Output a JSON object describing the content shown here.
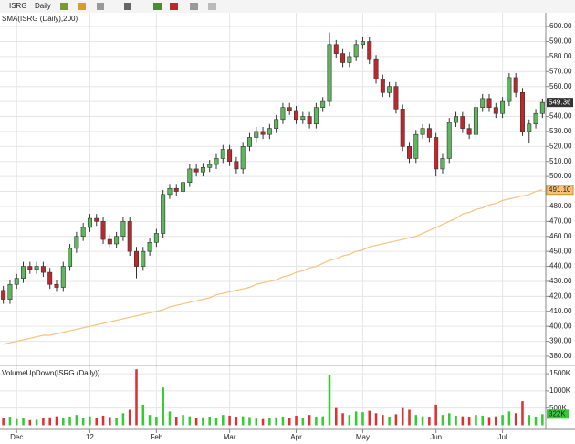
{
  "toolbar": {
    "symbol": "ISRG",
    "interval": "Daily"
  },
  "chart_data": [
    {
      "type": "candlestick",
      "title": "SMA(ISRG (Daily),200)",
      "categories": [
        null,
        null,
        "Dec",
        null,
        null,
        null,
        null,
        null,
        null,
        null,
        null,
        null,
        null,
        "12",
        null,
        null,
        null,
        null,
        null,
        null,
        null,
        null,
        null,
        "Feb",
        null,
        null,
        null,
        null,
        null,
        null,
        null,
        null,
        null,
        null,
        "Mar",
        null,
        null,
        null,
        null,
        null,
        null,
        null,
        null,
        null,
        "Apr",
        null,
        null,
        null,
        null,
        null,
        null,
        null,
        null,
        null,
        "May",
        null,
        null,
        null,
        null,
        null,
        null,
        null,
        null,
        null,
        null,
        "Jun",
        null,
        null,
        null,
        null,
        null,
        null,
        null,
        null,
        null,
        "Jul",
        null,
        null,
        null,
        null,
        null,
        null
      ],
      "open": [
        424,
        418,
        428,
        432,
        440,
        438,
        440,
        436,
        428,
        426,
        440,
        452,
        460,
        466,
        472,
        470,
        458,
        455,
        460,
        470,
        450,
        440,
        450,
        456,
        462,
        488,
        492,
        490,
        496,
        505,
        503,
        506,
        508,
        512,
        518,
        510,
        505,
        520,
        526,
        530,
        528,
        532,
        538,
        546,
        544,
        538,
        540,
        535,
        546,
        550,
        588,
        582,
        576,
        580,
        588,
        590,
        578,
        565,
        556,
        560,
        545,
        520,
        512,
        528,
        532,
        526,
        505,
        512,
        536,
        540,
        532,
        528,
        546,
        552,
        546,
        542,
        550,
        566,
        556,
        530,
        535,
        542
      ],
      "high": [
        427,
        431,
        435,
        443,
        443,
        443,
        443,
        439,
        431,
        443,
        455,
        463,
        469,
        475,
        475,
        473,
        461,
        463,
        473,
        473,
        453,
        453,
        459,
        465,
        491,
        495,
        495,
        499,
        508,
        508,
        509,
        511,
        515,
        521,
        521,
        513,
        523,
        529,
        533,
        533,
        535,
        541,
        549,
        549,
        547,
        543,
        543,
        549,
        553,
        596,
        591,
        585,
        583,
        591,
        593,
        593,
        581,
        568,
        563,
        563,
        548,
        523,
        531,
        535,
        535,
        529,
        515,
        539,
        543,
        543,
        535,
        549,
        555,
        555,
        549,
        553,
        569,
        569,
        559,
        538,
        545,
        552
      ],
      "low": [
        415,
        415,
        425,
        429,
        435,
        435,
        433,
        425,
        423,
        423,
        437,
        449,
        457,
        463,
        467,
        455,
        452,
        452,
        457,
        447,
        432,
        437,
        447,
        453,
        459,
        485,
        487,
        487,
        493,
        500,
        500,
        503,
        505,
        509,
        507,
        502,
        502,
        517,
        523,
        525,
        525,
        529,
        535,
        541,
        535,
        535,
        532,
        532,
        543,
        547,
        579,
        573,
        573,
        577,
        585,
        575,
        562,
        553,
        553,
        542,
        517,
        509,
        509,
        525,
        523,
        500,
        502,
        509,
        533,
        529,
        525,
        525,
        543,
        543,
        539,
        539,
        547,
        553,
        527,
        522,
        532,
        539
      ],
      "close": [
        418,
        428,
        432,
        440,
        438,
        440,
        436,
        428,
        426,
        440,
        452,
        460,
        466,
        472,
        470,
        458,
        455,
        460,
        470,
        450,
        440,
        450,
        456,
        462,
        488,
        492,
        490,
        496,
        505,
        503,
        506,
        508,
        512,
        518,
        510,
        505,
        520,
        526,
        530,
        528,
        532,
        538,
        546,
        544,
        538,
        540,
        535,
        546,
        550,
        588,
        582,
        576,
        580,
        588,
        590,
        578,
        565,
        556,
        560,
        545,
        520,
        512,
        528,
        532,
        526,
        505,
        512,
        536,
        540,
        532,
        528,
        546,
        552,
        546,
        542,
        550,
        566,
        556,
        530,
        535,
        542,
        549.36
      ],
      "up_color": "#5cb85c",
      "down_color": "#c0272d",
      "overlay": {
        "values": [
          388,
          389,
          390,
          391,
          392,
          393,
          394,
          394,
          395,
          396,
          397,
          398,
          399,
          400,
          401,
          402,
          403,
          404,
          405,
          406,
          407,
          408,
          409,
          410,
          411,
          413,
          414,
          415,
          416,
          417,
          418,
          419,
          421,
          422,
          423,
          424,
          425,
          426,
          428,
          429,
          430,
          431,
          433,
          434,
          436,
          437,
          439,
          440,
          442,
          444,
          445,
          447,
          448,
          450,
          451,
          453,
          454,
          455,
          456,
          457,
          458,
          459,
          460,
          462,
          464,
          466,
          468,
          470,
          472,
          475,
          476,
          478,
          479,
          481,
          482,
          484,
          485,
          486,
          487,
          488,
          490,
          491.1
        ],
        "color": "#f7c27e",
        "last_value_label": "491.10"
      },
      "ylim": [
        374.5,
        609.2
      ],
      "yticks": [
        {
          "value": 380,
          "label": "380.00"
        },
        {
          "value": 390,
          "label": "390.00"
        },
        {
          "value": 400,
          "label": "400.00"
        },
        {
          "value": 410,
          "label": "410.00"
        },
        {
          "value": 420,
          "label": "420.00"
        },
        {
          "value": 430,
          "label": "430.00"
        },
        {
          "value": 440,
          "label": "440.00"
        },
        {
          "value": 450,
          "label": "450.00"
        },
        {
          "value": 460,
          "label": "460.00"
        },
        {
          "value": 470,
          "label": "470.00"
        },
        {
          "value": 480,
          "label": "480.00"
        },
        {
          "value": 490,
          "label": "490.00"
        },
        {
          "value": 500,
          "label": "500.00"
        },
        {
          "value": 510,
          "label": "510.00"
        },
        {
          "value": 520,
          "label": "520.00"
        },
        {
          "value": 530,
          "label": "530.00"
        },
        {
          "value": 540,
          "label": "540.00"
        },
        {
          "value": 550,
          "label": "550.00"
        },
        {
          "value": 560,
          "label": "560.00"
        },
        {
          "value": 570,
          "label": "570.00"
        },
        {
          "value": 580,
          "label": "580.00"
        },
        {
          "value": 590,
          "label": "590.00"
        },
        {
          "value": 600,
          "label": "600.00"
        }
      ],
      "grid": true
    },
    {
      "type": "bar",
      "title": "VolumeUpDown(ISRG (Daily))",
      "values": [
        200000,
        250000,
        180000,
        220000,
        150000,
        160000,
        200000,
        230000,
        260000,
        210000,
        250000,
        300000,
        220000,
        260000,
        200000,
        280000,
        240000,
        220000,
        350000,
        450000,
        1630000,
        600000,
        300000,
        250000,
        1100000,
        400000,
        250000,
        300000,
        260000,
        200000,
        230000,
        250000,
        210000,
        300000,
        280000,
        250000,
        260000,
        240000,
        200000,
        180000,
        220000,
        230000,
        250000,
        200000,
        280000,
        220000,
        300000,
        250000,
        260000,
        1450000,
        500000,
        350000,
        300000,
        400000,
        380000,
        420000,
        350000,
        300000,
        250000,
        320000,
        500000,
        450000,
        300000,
        260000,
        250000,
        600000,
        300000,
        350000,
        280000,
        260000,
        250000,
        300000,
        280000,
        240000,
        260000,
        300000,
        400000,
        350000,
        700000,
        300000,
        250000,
        322000
      ],
      "last_value_label": "322K",
      "ylim": [
        -122000,
        1716000
      ],
      "yticks": [
        {
          "value": 500000,
          "label": "500K"
        },
        {
          "value": 1000000,
          "label": "1000K"
        },
        {
          "value": 1500000,
          "label": "1500K"
        }
      ],
      "grid": true
    }
  ]
}
